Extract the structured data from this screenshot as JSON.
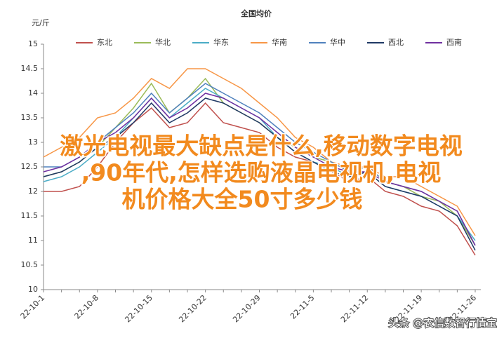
{
  "chart_data": {
    "type": "line",
    "title": "全国均价",
    "y_label": "元/斤",
    "categories": [
      "22-10-1",
      null,
      null,
      "22-10-8",
      null,
      null,
      "22-10-15",
      null,
      null,
      "22-10-22",
      null,
      null,
      "22-10-29",
      null,
      null,
      "22-11-5",
      null,
      null,
      "22-11-12",
      null,
      null,
      "22-11-19",
      null,
      null,
      "22-11-26"
    ],
    "series": [
      {
        "name": "东北",
        "color": "#c0504d",
        "values": [
          12.0,
          12.0,
          12.1,
          12.5,
          13.0,
          13.4,
          13.7,
          13.3,
          13.4,
          13.8,
          13.4,
          13.3,
          13.2,
          12.9,
          12.7,
          12.6,
          12.4,
          12.2,
          12.3,
          12.0,
          11.9,
          11.7,
          11.6,
          11.3,
          10.7
        ]
      },
      {
        "name": "华北",
        "color": "#9bbb59",
        "values": [
          12.3,
          12.4,
          12.6,
          12.9,
          13.3,
          13.7,
          14.2,
          13.6,
          13.9,
          14.3,
          13.8,
          13.6,
          13.4,
          13.1,
          12.9,
          12.7,
          12.6,
          12.4,
          12.5,
          12.2,
          12.1,
          11.9,
          11.8,
          11.5,
          10.9
        ]
      },
      {
        "name": "华东",
        "color": "#4bacc6",
        "values": [
          12.2,
          12.3,
          12.5,
          12.8,
          13.1,
          13.5,
          13.9,
          13.5,
          13.8,
          14.1,
          13.9,
          13.7,
          13.5,
          13.1,
          12.8,
          12.6,
          12.5,
          12.3,
          12.4,
          12.1,
          12.0,
          11.9,
          11.7,
          11.5,
          11.0
        ]
      },
      {
        "name": "华南",
        "color": "#f79646",
        "values": [
          12.7,
          12.9,
          13.1,
          13.5,
          13.6,
          13.9,
          14.3,
          14.1,
          14.5,
          14.5,
          14.3,
          14.1,
          13.8,
          13.5,
          13.1,
          12.9,
          12.6,
          12.5,
          12.5,
          12.3,
          12.3,
          12.1,
          11.9,
          11.7,
          11.1
        ]
      },
      {
        "name": "华中",
        "color": "#4f81bd",
        "values": [
          12.5,
          12.5,
          12.7,
          13.0,
          13.3,
          13.6,
          14.0,
          13.6,
          13.9,
          14.2,
          14.0,
          13.8,
          13.6,
          13.3,
          13.0,
          12.8,
          12.6,
          12.4,
          12.5,
          12.2,
          12.1,
          12.0,
          11.8,
          11.6,
          10.9
        ]
      },
      {
        "name": "西北",
        "color": "#1f3864",
        "values": [
          12.3,
          12.4,
          12.6,
          12.9,
          13.1,
          13.4,
          13.8,
          13.4,
          13.6,
          13.9,
          13.8,
          13.6,
          13.4,
          13.1,
          12.8,
          12.6,
          12.4,
          12.3,
          12.4,
          12.1,
          12.0,
          11.9,
          11.7,
          11.5,
          10.8
        ]
      },
      {
        "name": "西南",
        "color": "#7030a0",
        "values": [
          12.4,
          12.5,
          12.7,
          13.0,
          13.2,
          13.5,
          13.9,
          13.5,
          13.7,
          14.0,
          13.9,
          13.7,
          13.5,
          13.2,
          12.9,
          12.7,
          12.5,
          12.4,
          12.4,
          12.2,
          12.1,
          12.0,
          11.8,
          11.6,
          10.9
        ]
      }
    ],
    "ylim": [
      10,
      15
    ],
    "yticks": [
      10,
      10.5,
      11,
      11.5,
      12,
      12.5,
      13,
      13.5,
      14,
      14.5,
      15
    ],
    "legend": "top",
    "annotations": [
      "激光电视最大缺点是什么,移动数字电视",
      ",90年代,怎样选购液晶电视机,电视",
      "机价格大全50寸多少钱",
      "头条 @农信数智行情宝"
    ]
  }
}
